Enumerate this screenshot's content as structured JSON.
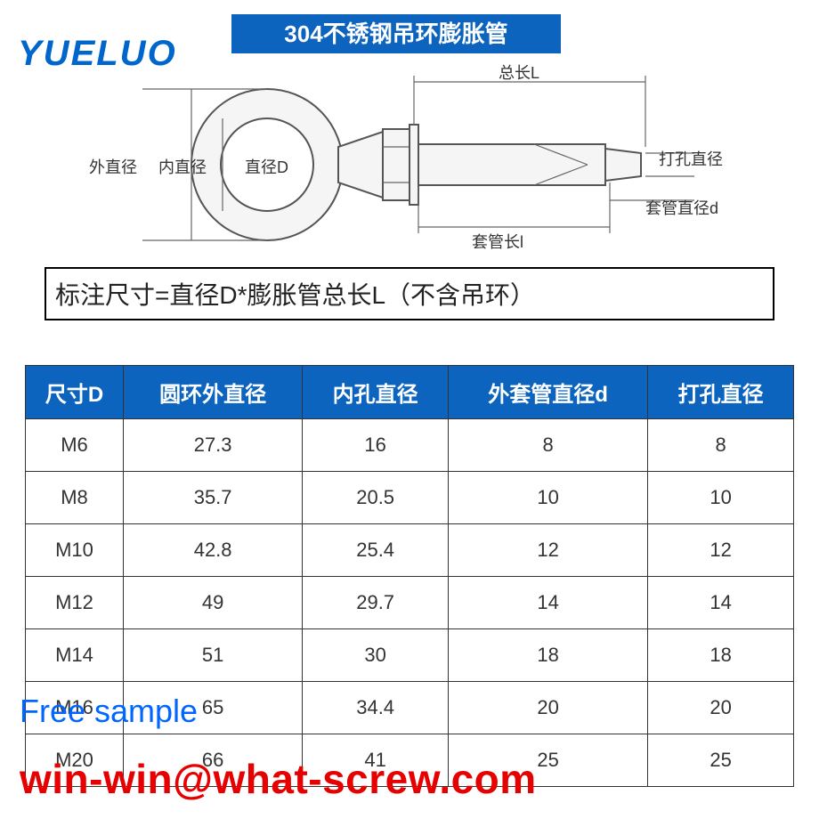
{
  "logo": {
    "text": "YUELUO",
    "color": "#0066cc",
    "fontsize": 40
  },
  "title": {
    "text": "304不锈钢吊环膨胀管",
    "bg": "#0d64bf",
    "color": "#ffffff",
    "fontsize": 26
  },
  "diagram_labels": {
    "outer_dia": "外直径",
    "inner_dia": "内直径",
    "dia_d": "直径D",
    "total_len": "总长L",
    "sleeve_len": "套管长l",
    "drill_dia": "打孔直径",
    "sleeve_dia": "套管直径d"
  },
  "note": "标注尺寸=直径D*膨胀管总长L（不含吊环）",
  "watermark_mid": "what-screw.com",
  "table": {
    "header_bg": "#0d64bf",
    "header_color": "#ffffff",
    "header_fontsize": 24,
    "cell_fontsize": 22,
    "border_color": "#333333",
    "columns": [
      "尺寸D",
      "圆环外直径",
      "内孔直径",
      "外套管直径d",
      "打孔直径"
    ],
    "rows": [
      [
        "M6",
        "27.3",
        "16",
        "8",
        "8"
      ],
      [
        "M8",
        "35.7",
        "20.5",
        "10",
        "10"
      ],
      [
        "M10",
        "42.8",
        "25.4",
        "12",
        "12"
      ],
      [
        "M12",
        "49",
        "29.7",
        "14",
        "14"
      ],
      [
        "M14",
        "51",
        "30",
        "18",
        "18"
      ],
      [
        "M16",
        "65",
        "34.4",
        "20",
        "20"
      ],
      [
        "M20",
        "66",
        "41",
        "25",
        "25"
      ]
    ]
  },
  "free_sample": {
    "text": "Free sample",
    "color": "#0066ff",
    "fontsize": 36
  },
  "email": {
    "text": "win-win@what-screw.com",
    "color": "#e60000",
    "fontsize": 46
  }
}
